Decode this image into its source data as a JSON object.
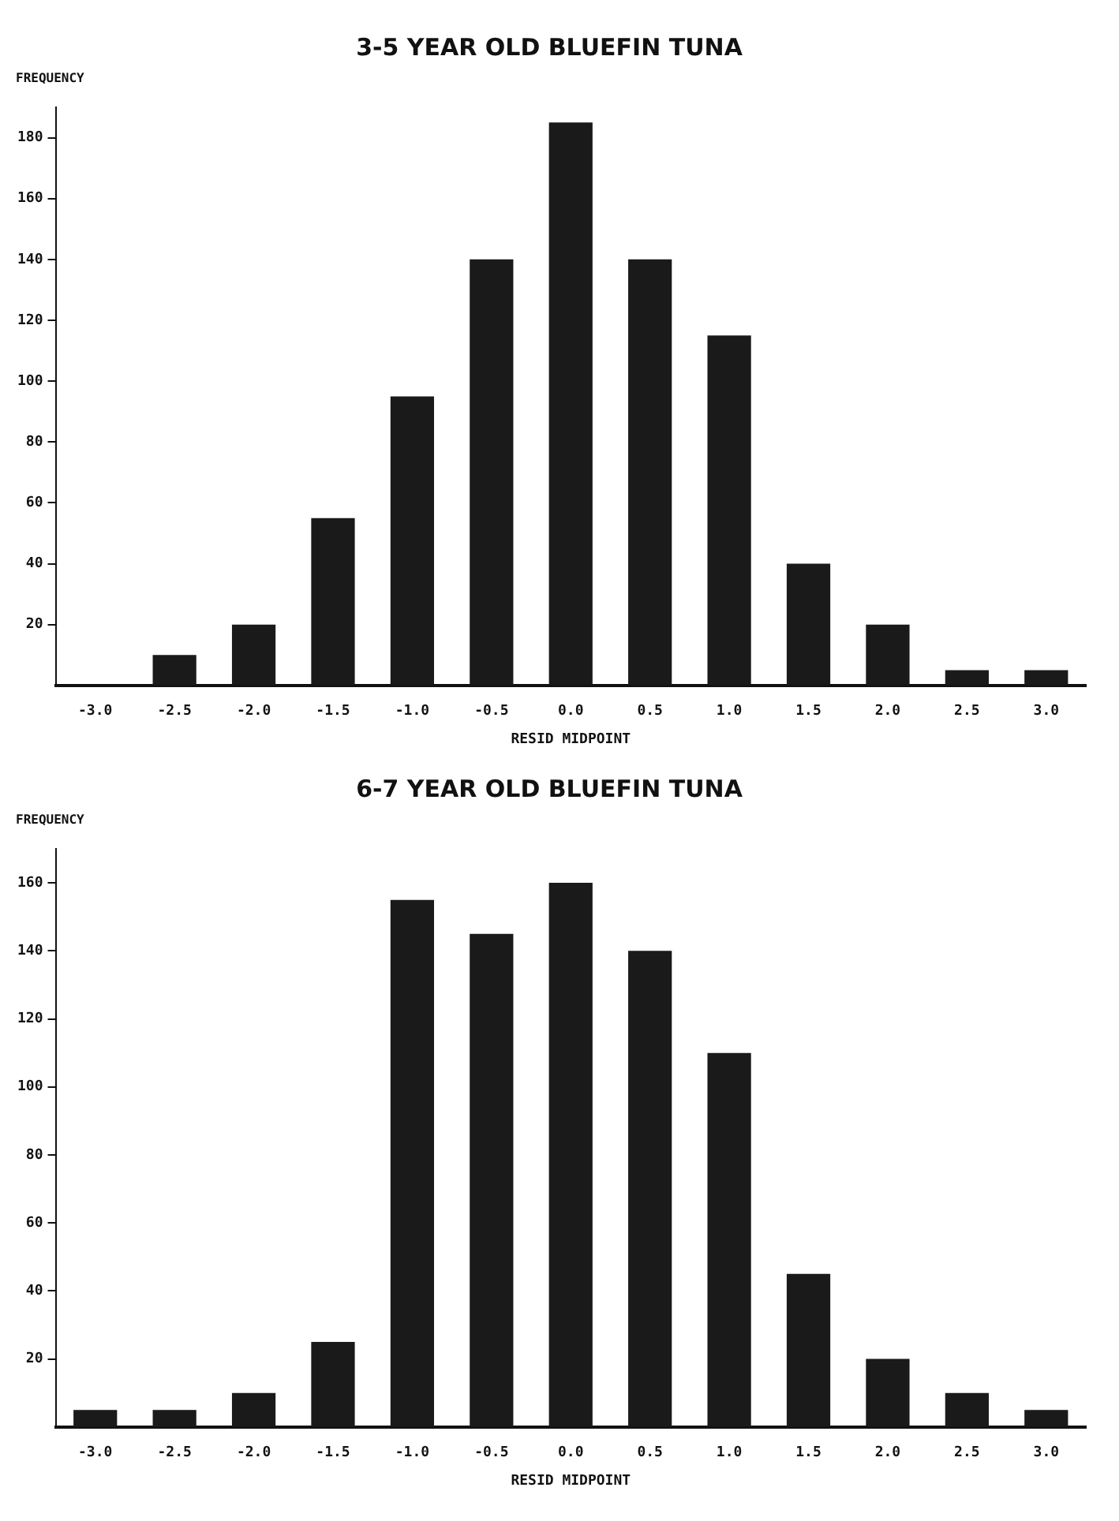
{
  "chart_data": [
    {
      "type": "bar",
      "title": "3-5 YEAR OLD BLUEFIN TUNA",
      "xlabel": "RESID MIDPOINT",
      "ylabel": "FREQUENCY",
      "categories": [
        "-3.0",
        "-2.5",
        "-2.0",
        "-1.5",
        "-1.0",
        "-0.5",
        "0.0",
        "0.5",
        "1.0",
        "1.5",
        "2.0",
        "2.5",
        "3.0"
      ],
      "values": [
        0,
        10,
        20,
        55,
        95,
        140,
        185,
        140,
        115,
        40,
        20,
        5,
        5
      ],
      "color": "#1a1a1a",
      "ylim": [
        0,
        190
      ],
      "yticks": [
        20,
        40,
        60,
        80,
        100,
        120,
        140,
        160,
        180
      ],
      "grid": false
    },
    {
      "type": "bar",
      "title": "6-7 YEAR OLD BLUEFIN TUNA",
      "xlabel": "RESID MIDPOINT",
      "ylabel": "FREQUENCY",
      "categories": [
        "-3.0",
        "-2.5",
        "-2.0",
        "-1.5",
        "-1.0",
        "-0.5",
        "0.0",
        "0.5",
        "1.0",
        "1.5",
        "2.0",
        "2.5",
        "3.0"
      ],
      "values": [
        5,
        5,
        10,
        25,
        155,
        145,
        160,
        140,
        110,
        45,
        20,
        10,
        5
      ],
      "color": "#1a1a1a",
      "ylim": [
        0,
        170
      ],
      "yticks": [
        20,
        40,
        60,
        80,
        100,
        120,
        140,
        160
      ],
      "grid": false
    }
  ]
}
